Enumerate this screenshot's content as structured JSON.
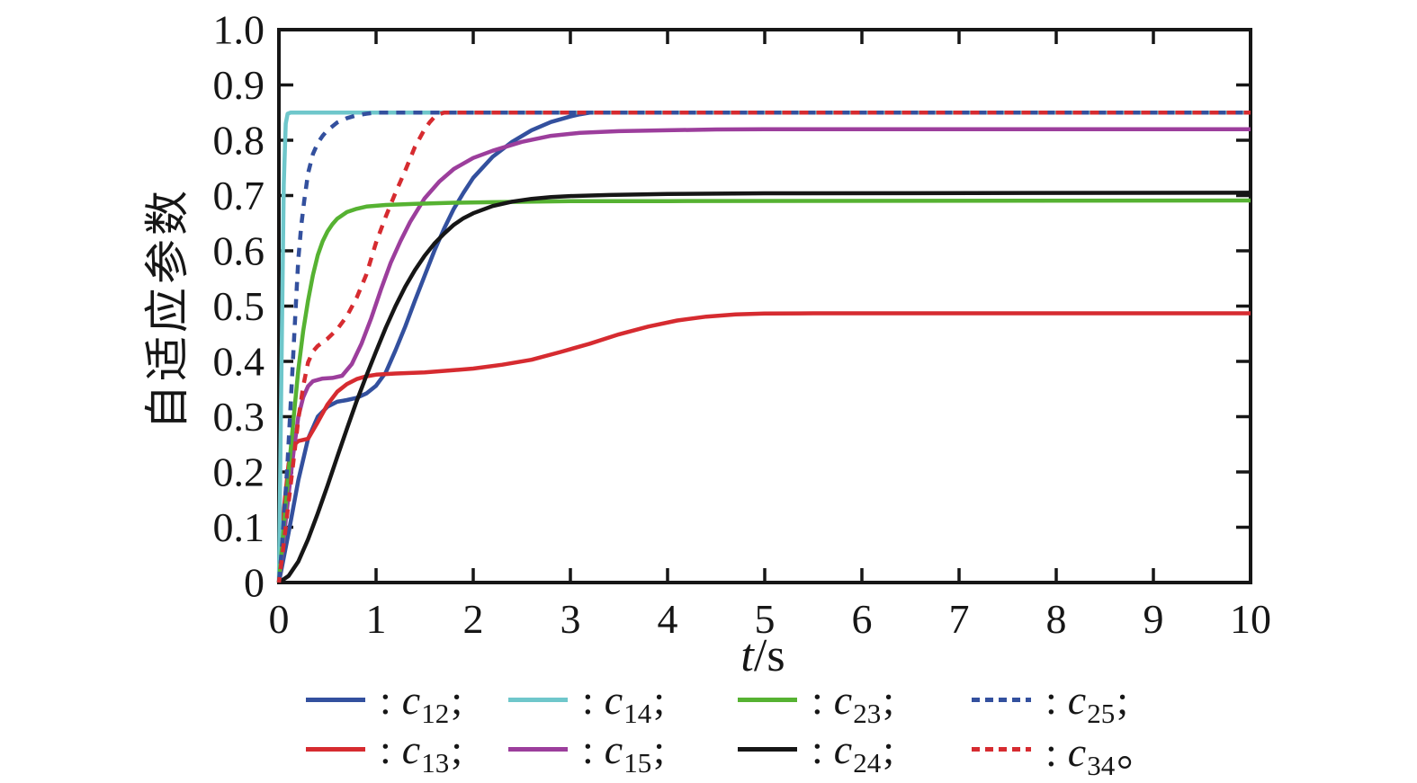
{
  "chart_data": {
    "type": "line",
    "title": "",
    "xlabel": {
      "var": "t",
      "unit": "/s"
    },
    "ylabel": "自适应参数",
    "xlim": [
      0,
      10
    ],
    "ylim": [
      0,
      1
    ],
    "grid": false,
    "axis_color": "#161616",
    "background": "#ffffff",
    "xticks": {
      "values": [
        0,
        1,
        2,
        3,
        4,
        5,
        6,
        7,
        8,
        9,
        10
      ],
      "labels": [
        "0",
        "1",
        "2",
        "3",
        "4",
        "5",
        "6",
        "7",
        "8",
        "9",
        "10"
      ]
    },
    "yticks": {
      "values": [
        0,
        0.1,
        0.2,
        0.3,
        0.4,
        0.5,
        0.6,
        0.7,
        0.8,
        0.9,
        1.0
      ],
      "labels": [
        "0",
        "0.1",
        "0.2",
        "0.3",
        "0.4",
        "0.5",
        "0.6",
        "0.7",
        "0.8",
        "0.9",
        "1.0"
      ]
    },
    "series": [
      {
        "id": "c12",
        "var": "c",
        "sub": "12",
        "suffix": ";",
        "color": "#33509e",
        "style": "solid",
        "points": [
          [
            0,
            0
          ],
          [
            0.05,
            0.045
          ],
          [
            0.1,
            0.09
          ],
          [
            0.2,
            0.185
          ],
          [
            0.3,
            0.26
          ],
          [
            0.4,
            0.3
          ],
          [
            0.5,
            0.318
          ],
          [
            0.6,
            0.327
          ],
          [
            0.7,
            0.33
          ],
          [
            0.8,
            0.334
          ],
          [
            0.9,
            0.342
          ],
          [
            1.0,
            0.356
          ],
          [
            1.1,
            0.38
          ],
          [
            1.2,
            0.42
          ],
          [
            1.3,
            0.463
          ],
          [
            1.4,
            0.51
          ],
          [
            1.5,
            0.555
          ],
          [
            1.6,
            0.6
          ],
          [
            1.7,
            0.64
          ],
          [
            1.8,
            0.676
          ],
          [
            1.9,
            0.705
          ],
          [
            2.0,
            0.732
          ],
          [
            2.2,
            0.77
          ],
          [
            2.4,
            0.797
          ],
          [
            2.6,
            0.818
          ],
          [
            2.8,
            0.833
          ],
          [
            3.0,
            0.843
          ],
          [
            3.1,
            0.847
          ],
          [
            3.2,
            0.85
          ],
          [
            10,
            0.85
          ]
        ]
      },
      {
        "id": "c13",
        "var": "c",
        "sub": "13",
        "suffix": ";",
        "color": "#d62b30",
        "style": "solid",
        "points": [
          [
            0,
            0
          ],
          [
            0.05,
            0.13
          ],
          [
            0.1,
            0.215
          ],
          [
            0.15,
            0.248
          ],
          [
            0.2,
            0.256
          ],
          [
            0.3,
            0.26
          ],
          [
            0.4,
            0.29
          ],
          [
            0.5,
            0.322
          ],
          [
            0.6,
            0.345
          ],
          [
            0.7,
            0.359
          ],
          [
            0.8,
            0.368
          ],
          [
            0.9,
            0.373
          ],
          [
            1.0,
            0.376
          ],
          [
            1.2,
            0.378
          ],
          [
            1.5,
            0.38
          ],
          [
            1.8,
            0.384
          ],
          [
            2.0,
            0.387
          ],
          [
            2.3,
            0.394
          ],
          [
            2.6,
            0.403
          ],
          [
            2.9,
            0.417
          ],
          [
            3.2,
            0.432
          ],
          [
            3.5,
            0.449
          ],
          [
            3.8,
            0.463
          ],
          [
            4.1,
            0.474
          ],
          [
            4.4,
            0.481
          ],
          [
            4.7,
            0.485
          ],
          [
            5.0,
            0.4865
          ],
          [
            5.5,
            0.487
          ],
          [
            10,
            0.487
          ]
        ]
      },
      {
        "id": "c14",
        "var": "c",
        "sub": "14",
        "suffix": ";",
        "color": "#6fc7cb",
        "style": "solid",
        "points": [
          [
            0,
            0
          ],
          [
            0.02,
            0.3
          ],
          [
            0.05,
            0.72
          ],
          [
            0.07,
            0.83
          ],
          [
            0.09,
            0.848
          ],
          [
            0.12,
            0.85
          ],
          [
            10,
            0.85
          ]
        ]
      },
      {
        "id": "c15",
        "var": "c",
        "sub": "15",
        "suffix": ";",
        "color": "#9c3e9c",
        "style": "solid",
        "points": [
          [
            0,
            0
          ],
          [
            0.05,
            0.08
          ],
          [
            0.1,
            0.16
          ],
          [
            0.15,
            0.235
          ],
          [
            0.2,
            0.3
          ],
          [
            0.25,
            0.335
          ],
          [
            0.3,
            0.355
          ],
          [
            0.35,
            0.364
          ],
          [
            0.45,
            0.369
          ],
          [
            0.55,
            0.37
          ],
          [
            0.65,
            0.374
          ],
          [
            0.75,
            0.395
          ],
          [
            0.85,
            0.432
          ],
          [
            0.95,
            0.478
          ],
          [
            1.05,
            0.53
          ],
          [
            1.15,
            0.578
          ],
          [
            1.25,
            0.617
          ],
          [
            1.35,
            0.652
          ],
          [
            1.5,
            0.695
          ],
          [
            1.65,
            0.725
          ],
          [
            1.8,
            0.748
          ],
          [
            2.0,
            0.768
          ],
          [
            2.2,
            0.781
          ],
          [
            2.5,
            0.797
          ],
          [
            2.8,
            0.808
          ],
          [
            3.1,
            0.8135
          ],
          [
            3.5,
            0.8165
          ],
          [
            4.0,
            0.818
          ],
          [
            4.5,
            0.8195
          ],
          [
            5.0,
            0.82
          ],
          [
            10,
            0.82
          ]
        ]
      },
      {
        "id": "c23",
        "var": "c",
        "sub": "23",
        "suffix": ";",
        "color": "#56b232",
        "style": "solid",
        "points": [
          [
            0,
            0
          ],
          [
            0.05,
            0.1
          ],
          [
            0.1,
            0.2
          ],
          [
            0.15,
            0.295
          ],
          [
            0.2,
            0.385
          ],
          [
            0.25,
            0.455
          ],
          [
            0.3,
            0.51
          ],
          [
            0.35,
            0.556
          ],
          [
            0.4,
            0.592
          ],
          [
            0.45,
            0.617
          ],
          [
            0.5,
            0.635
          ],
          [
            0.55,
            0.648
          ],
          [
            0.6,
            0.658
          ],
          [
            0.7,
            0.67
          ],
          [
            0.8,
            0.676
          ],
          [
            0.9,
            0.68
          ],
          [
            1.1,
            0.683
          ],
          [
            1.4,
            0.685
          ],
          [
            1.8,
            0.687
          ],
          [
            2.2,
            0.688
          ],
          [
            3.0,
            0.69
          ],
          [
            4.0,
            0.69
          ],
          [
            10,
            0.691
          ]
        ]
      },
      {
        "id": "c24",
        "var": "c",
        "sub": "24",
        "suffix": ";",
        "color": "#161616",
        "style": "solid",
        "points": [
          [
            0,
            0
          ],
          [
            0.1,
            0.012
          ],
          [
            0.2,
            0.038
          ],
          [
            0.3,
            0.078
          ],
          [
            0.4,
            0.125
          ],
          [
            0.5,
            0.175
          ],
          [
            0.6,
            0.227
          ],
          [
            0.7,
            0.278
          ],
          [
            0.8,
            0.328
          ],
          [
            0.9,
            0.374
          ],
          [
            1.0,
            0.418
          ],
          [
            1.1,
            0.461
          ],
          [
            1.2,
            0.5
          ],
          [
            1.3,
            0.535
          ],
          [
            1.4,
            0.565
          ],
          [
            1.5,
            0.591
          ],
          [
            1.6,
            0.613
          ],
          [
            1.7,
            0.631
          ],
          [
            1.8,
            0.647
          ],
          [
            1.9,
            0.659
          ],
          [
            2.0,
            0.668
          ],
          [
            2.2,
            0.681
          ],
          [
            2.4,
            0.689
          ],
          [
            2.6,
            0.694
          ],
          [
            2.8,
            0.697
          ],
          [
            3.0,
            0.699
          ],
          [
            3.4,
            0.701
          ],
          [
            4.0,
            0.703
          ],
          [
            5.0,
            0.704
          ],
          [
            10,
            0.705
          ]
        ]
      },
      {
        "id": "c25",
        "var": "c",
        "sub": "25",
        "suffix": ";",
        "color": "#33509e",
        "style": "dashed",
        "points": [
          [
            0,
            0
          ],
          [
            0.03,
            0.06
          ],
          [
            0.06,
            0.14
          ],
          [
            0.09,
            0.22
          ],
          [
            0.12,
            0.32
          ],
          [
            0.15,
            0.42
          ],
          [
            0.18,
            0.52
          ],
          [
            0.2,
            0.585
          ],
          [
            0.23,
            0.645
          ],
          [
            0.26,
            0.69
          ],
          [
            0.3,
            0.74
          ],
          [
            0.35,
            0.775
          ],
          [
            0.4,
            0.795
          ],
          [
            0.45,
            0.808
          ],
          [
            0.5,
            0.818
          ],
          [
            0.6,
            0.832
          ],
          [
            0.7,
            0.84
          ],
          [
            0.8,
            0.845
          ],
          [
            0.9,
            0.848
          ],
          [
            1.0,
            0.85
          ],
          [
            10,
            0.85
          ]
        ]
      },
      {
        "id": "c34",
        "var": "c",
        "sub": "34",
        "suffix": "。",
        "color": "#d62b30",
        "style": "dashed",
        "points": [
          [
            0,
            0
          ],
          [
            0.05,
            0.07
          ],
          [
            0.1,
            0.145
          ],
          [
            0.15,
            0.22
          ],
          [
            0.2,
            0.295
          ],
          [
            0.25,
            0.355
          ],
          [
            0.3,
            0.398
          ],
          [
            0.35,
            0.418
          ],
          [
            0.4,
            0.428
          ],
          [
            0.5,
            0.441
          ],
          [
            0.6,
            0.458
          ],
          [
            0.7,
            0.482
          ],
          [
            0.8,
            0.515
          ],
          [
            0.9,
            0.557
          ],
          [
            1.0,
            0.615
          ],
          [
            1.1,
            0.662
          ],
          [
            1.2,
            0.705
          ],
          [
            1.3,
            0.745
          ],
          [
            1.4,
            0.788
          ],
          [
            1.5,
            0.82
          ],
          [
            1.55,
            0.832
          ],
          [
            1.6,
            0.842
          ],
          [
            1.65,
            0.847
          ],
          [
            1.7,
            0.85
          ],
          [
            10,
            0.85
          ]
        ]
      }
    ],
    "legend": {
      "position": "below",
      "prefix": ":",
      "rows": [
        [
          "c12",
          "c14",
          "c23",
          "c25"
        ],
        [
          "c13",
          "c15",
          "c24",
          "c34"
        ]
      ]
    }
  }
}
